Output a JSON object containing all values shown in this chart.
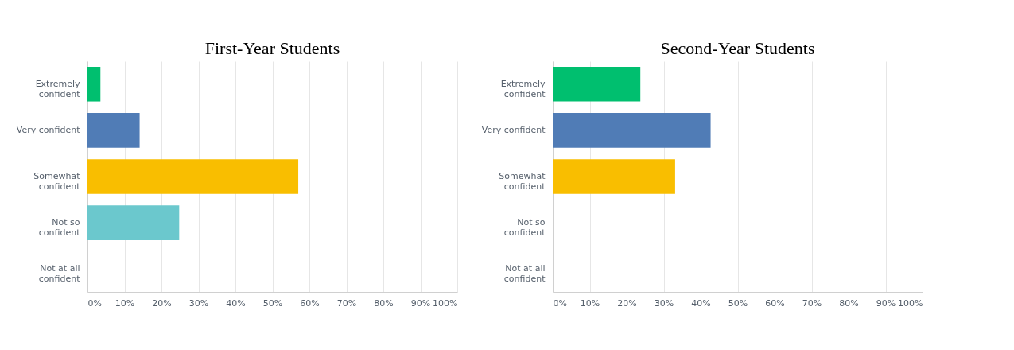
{
  "chart_data": [
    {
      "type": "bar",
      "orientation": "horizontal",
      "title": "First-Year Students",
      "categories": [
        "Extremely confident",
        "Very confident",
        "Somewhat confident",
        "Not so confident",
        "Not at all confident"
      ],
      "values": [
        3.5,
        14.1,
        57,
        24.8,
        0
      ],
      "colors": [
        "#00bf6f",
        "#507cb6",
        "#f9be00",
        "#6bc8cd",
        "#6bc8cd"
      ],
      "xlim": [
        0,
        100
      ],
      "xticks": [
        {
          "value": 0,
          "label": "0%"
        },
        {
          "value": 10,
          "label": "10%"
        },
        {
          "value": 20,
          "label": "20%"
        },
        {
          "value": 30,
          "label": "30%"
        },
        {
          "value": 40,
          "label": "40%"
        },
        {
          "value": 50,
          "label": "50%"
        },
        {
          "value": 60,
          "label": "60%"
        },
        {
          "value": 70,
          "label": "70%"
        },
        {
          "value": 80,
          "label": "80%"
        },
        {
          "value": 90,
          "label": "90%"
        },
        {
          "value": 100,
          "label": "100%"
        }
      ],
      "grid": "x",
      "legend": false
    },
    {
      "type": "bar",
      "orientation": "horizontal",
      "title": "Second-Year Students",
      "categories": [
        "Extremely confident",
        "Very confident",
        "Somewhat confident",
        "Not so confident",
        "Not at all confident"
      ],
      "values": [
        23.7,
        42.7,
        33.1,
        0,
        0
      ],
      "colors": [
        "#00bf6f",
        "#507cb6",
        "#f9be00",
        "#6bc8cd",
        "#6bc8cd"
      ],
      "xlim": [
        0,
        100
      ],
      "xticks": [
        {
          "value": 0,
          "label": "0%"
        },
        {
          "value": 10,
          "label": "10%"
        },
        {
          "value": 20,
          "label": "20%"
        },
        {
          "value": 30,
          "label": "30%"
        },
        {
          "value": 40,
          "label": "40%"
        },
        {
          "value": 50,
          "label": "50%"
        },
        {
          "value": 60,
          "label": "60%"
        },
        {
          "value": 70,
          "label": "70%"
        },
        {
          "value": 80,
          "label": "80%"
        },
        {
          "value": 90,
          "label": "90%"
        },
        {
          "value": 100,
          "label": "100%"
        }
      ],
      "grid": "x",
      "legend": false
    }
  ]
}
